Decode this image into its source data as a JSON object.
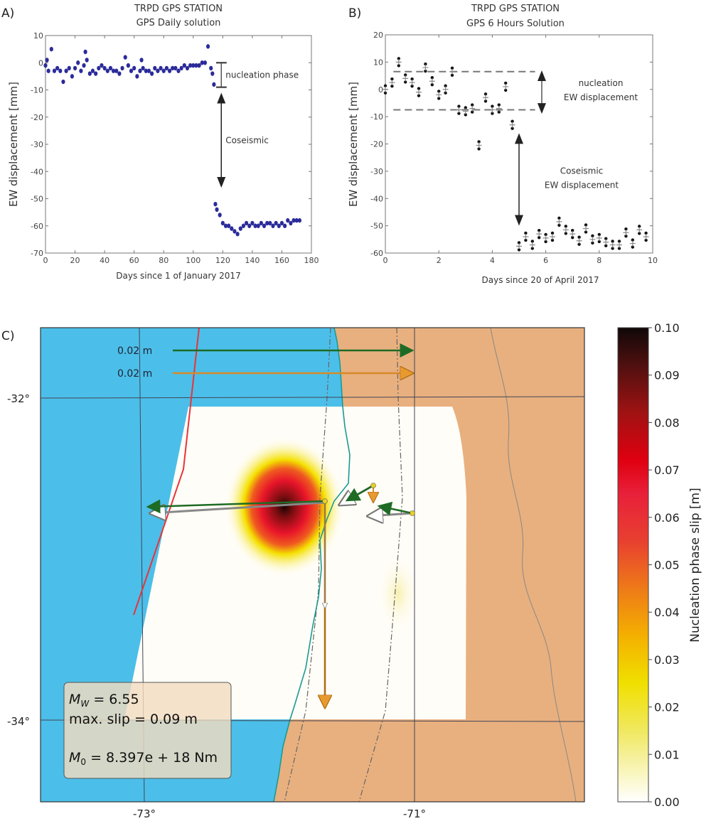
{
  "chart_data": [
    {
      "panel_label": "A)",
      "type": "scatter",
      "title": "TRPD GPS STATION",
      "subtitle": "GPS Daily solution",
      "xlabel": "Days since 1 of January 2017",
      "ylabel": "EW displacement [mm]",
      "xlim": [
        0,
        180
      ],
      "ylim": [
        -70,
        10
      ],
      "xticks": [
        0,
        20,
        40,
        60,
        80,
        100,
        120,
        140,
        160,
        180
      ],
      "yticks": [
        -70,
        -60,
        -50,
        -40,
        -30,
        -20,
        -10,
        0,
        10
      ],
      "marker_color": "#2b2b9a",
      "points": [
        [
          0,
          -1
        ],
        [
          1,
          1
        ],
        [
          2,
          -3
        ],
        [
          4,
          5
        ],
        [
          6,
          -3
        ],
        [
          8,
          -2
        ],
        [
          10,
          -3
        ],
        [
          12,
          -7
        ],
        [
          14,
          -3
        ],
        [
          16,
          -2
        ],
        [
          18,
          -5
        ],
        [
          20,
          -2
        ],
        [
          22,
          0
        ],
        [
          24,
          -3
        ],
        [
          26,
          -1
        ],
        [
          27,
          4
        ],
        [
          28,
          1
        ],
        [
          30,
          -4
        ],
        [
          32,
          -3
        ],
        [
          34,
          -4
        ],
        [
          36,
          -2
        ],
        [
          38,
          -1
        ],
        [
          40,
          -2
        ],
        [
          42,
          -3
        ],
        [
          44,
          -2
        ],
        [
          46,
          -3
        ],
        [
          48,
          -3
        ],
        [
          50,
          -4
        ],
        [
          52,
          -2
        ],
        [
          54,
          2
        ],
        [
          56,
          -1
        ],
        [
          58,
          -3
        ],
        [
          60,
          -2
        ],
        [
          62,
          -5
        ],
        [
          64,
          -3
        ],
        [
          65,
          1
        ],
        [
          66,
          -2
        ],
        [
          68,
          -3
        ],
        [
          70,
          -3
        ],
        [
          72,
          -4
        ],
        [
          74,
          -2
        ],
        [
          76,
          -3
        ],
        [
          78,
          -2
        ],
        [
          80,
          -3
        ],
        [
          82,
          -2
        ],
        [
          84,
          -3
        ],
        [
          86,
          -2
        ],
        [
          88,
          -2
        ],
        [
          90,
          -3
        ],
        [
          92,
          -2
        ],
        [
          94,
          -1
        ],
        [
          96,
          -2
        ],
        [
          98,
          -1
        ],
        [
          100,
          -1
        ],
        [
          102,
          -1
        ],
        [
          104,
          -1
        ],
        [
          106,
          0
        ],
        [
          108,
          0
        ],
        [
          110,
          6
        ],
        [
          112,
          -2
        ],
        [
          113,
          -4
        ],
        [
          114,
          -8
        ],
        [
          115,
          -52
        ],
        [
          116,
          -54
        ],
        [
          118,
          -56
        ],
        [
          120,
          -59
        ],
        [
          122,
          -60
        ],
        [
          124,
          -60
        ],
        [
          126,
          -61
        ],
        [
          128,
          -62
        ],
        [
          130,
          -63
        ],
        [
          132,
          -61
        ],
        [
          134,
          -60
        ],
        [
          136,
          -59
        ],
        [
          138,
          -60
        ],
        [
          140,
          -59
        ],
        [
          142,
          -60
        ],
        [
          144,
          -60
        ],
        [
          146,
          -59
        ],
        [
          148,
          -60
        ],
        [
          150,
          -59
        ],
        [
          152,
          -59
        ],
        [
          154,
          -60
        ],
        [
          156,
          -59
        ],
        [
          158,
          -60
        ],
        [
          160,
          -59
        ],
        [
          162,
          -60
        ],
        [
          164,
          -58
        ],
        [
          166,
          -59
        ],
        [
          168,
          -58
        ],
        [
          170,
          -58
        ],
        [
          172,
          -58
        ]
      ],
      "annotations": [
        {
          "text": "nucleation phase",
          "x": 119,
          "y_from": 0,
          "y_to": -9
        },
        {
          "text": "Coseismic",
          "x": 119,
          "y_from": -13,
          "y_to": -44
        }
      ]
    },
    {
      "panel_label": "B)",
      "type": "scatter",
      "title": "TRPD GPS STATION",
      "subtitle": "GPS 6 Hours Solution",
      "xlabel": "Days since 20 of April 2017",
      "ylabel": "EW displacement [mm]",
      "xlim": [
        0,
        10
      ],
      "ylim": [
        -60,
        20
      ],
      "xticks": [
        0,
        2,
        4,
        6,
        8,
        10
      ],
      "yticks": [
        -60,
        -50,
        -40,
        -30,
        -20,
        -10,
        0,
        10,
        20
      ],
      "points": [
        [
          0,
          0
        ],
        [
          0.25,
          2.5
        ],
        [
          0.5,
          10
        ],
        [
          0.75,
          4
        ],
        [
          1,
          2.5
        ],
        [
          1.25,
          -1
        ],
        [
          1.5,
          8
        ],
        [
          1.75,
          3
        ],
        [
          2,
          -2
        ],
        [
          2.25,
          0
        ],
        [
          2.5,
          6.5
        ],
        [
          2.75,
          -7.5
        ],
        [
          3,
          -8
        ],
        [
          3.25,
          -7
        ],
        [
          3.5,
          -20.5
        ],
        [
          3.75,
          -3
        ],
        [
          4,
          -7.5
        ],
        [
          4.25,
          -7
        ],
        [
          4.5,
          1
        ],
        [
          4.75,
          -13
        ],
        [
          5,
          -57.5
        ],
        [
          5.25,
          -54
        ],
        [
          5.5,
          -57
        ],
        [
          5.75,
          -53
        ],
        [
          6,
          -54.5
        ],
        [
          6.25,
          -54
        ],
        [
          6.5,
          -48.5
        ],
        [
          6.75,
          -51.5
        ],
        [
          7,
          -53
        ],
        [
          7.25,
          -55.5
        ],
        [
          7.5,
          -51
        ],
        [
          7.75,
          -55
        ],
        [
          8,
          -54.5
        ],
        [
          8.25,
          -56
        ],
        [
          8.5,
          -57
        ],
        [
          8.75,
          -57
        ],
        [
          9,
          -52.5
        ],
        [
          9.25,
          -56.5
        ],
        [
          9.5,
          -51.5
        ],
        [
          9.75,
          -54
        ]
      ],
      "dashed_levels": [
        6.5,
        -7.5
      ],
      "annotations": [
        {
          "text": "nucleation",
          "text2": "EW displacement",
          "x": 5.85,
          "y_from": 5,
          "y_to": -7
        },
        {
          "text": "Coseismic",
          "text2": "EW displacement",
          "x": 5.0,
          "y_from": -18,
          "y_to": -48
        }
      ]
    },
    {
      "panel_label": "C)",
      "type": "heatmap",
      "lat_ticks": [
        "-32°",
        "-34°"
      ],
      "lon_ticks": [
        "-73°",
        "-71°"
      ],
      "scale_arrows": [
        {
          "label": "0.02 m",
          "color": "#1e6b25"
        },
        {
          "label": "0.02 m",
          "color": "#d98a2a"
        }
      ],
      "ocean_color": "#4bbfe9",
      "land_color": "#e8b07f",
      "trench_color": "#e8343a",
      "coast_color": "#1a9a95",
      "info_box": {
        "mw_symbol": "M",
        "mw_sub": "W",
        "mw_value": " = 6.55",
        "max_slip": "max. slip = 0.09 m",
        "m0_symbol": "M",
        "m0_sub": "0",
        "m0_value": " = 8.397e + 18 Nm"
      },
      "colorbar": {
        "label": "Nucleation phase slip [m]",
        "range": [
          0.0,
          0.1
        ],
        "ticks": [
          "0.00",
          "0.01",
          "0.02",
          "0.03",
          "0.04",
          "0.05",
          "0.06",
          "0.07",
          "0.08",
          "0.09",
          "0.10"
        ],
        "colormap": [
          "#ffffff",
          "#f0e860",
          "#f4d800",
          "#f0a020",
          "#e85a20",
          "#e8203a",
          "#e00010",
          "#a01010",
          "#501010",
          "#100808"
        ]
      }
    }
  ]
}
